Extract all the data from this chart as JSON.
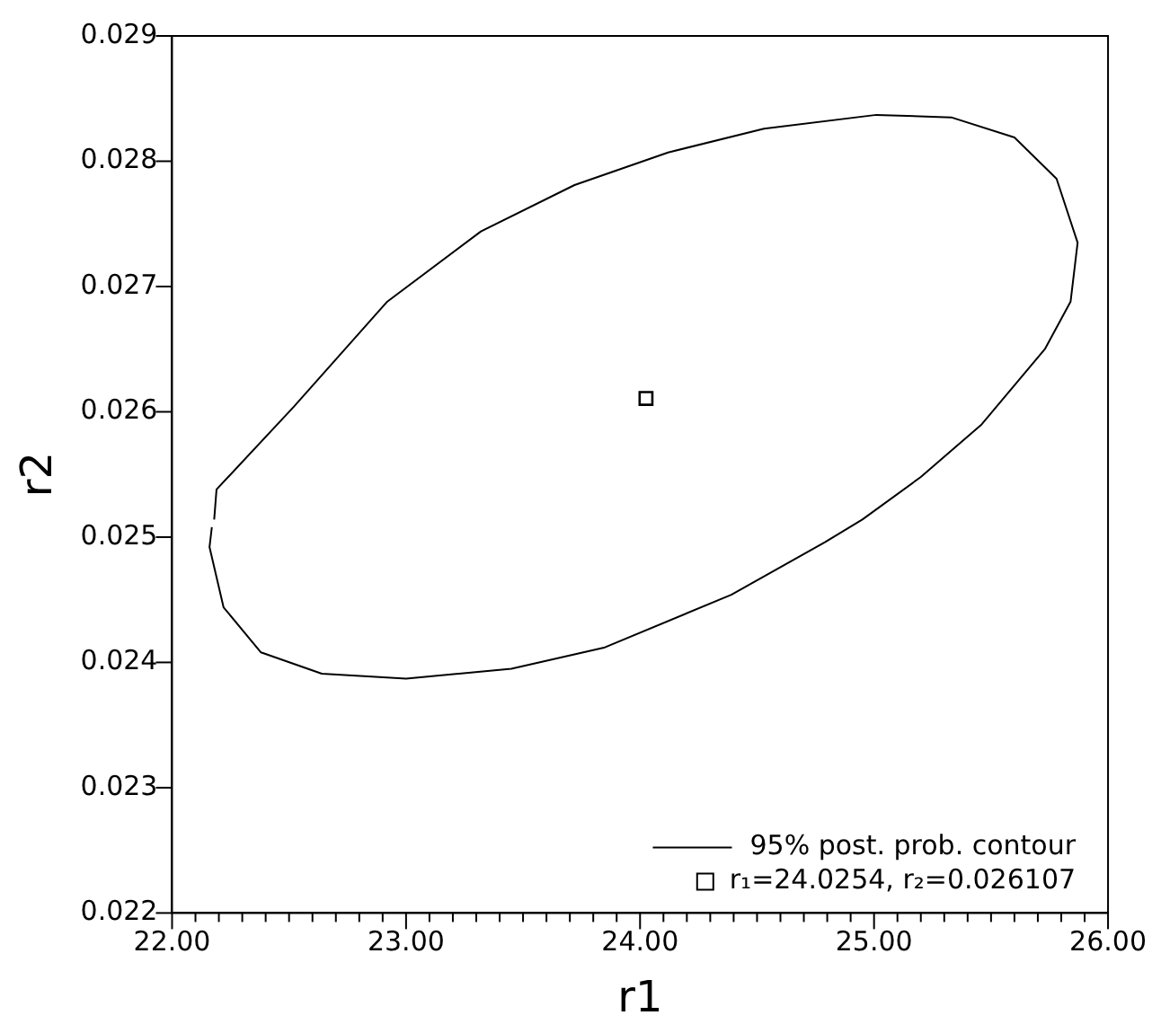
{
  "chart_data": {
    "type": "line",
    "xlabel": "r1",
    "ylabel": "r2",
    "xlim": [
      22,
      26
    ],
    "ylim": [
      0.022,
      0.029
    ],
    "xticks": [
      {
        "value": 22,
        "label": "22.00"
      },
      {
        "value": 22.1,
        "label": null
      },
      {
        "value": 22.2,
        "label": null
      },
      {
        "value": 22.3,
        "label": null
      },
      {
        "value": 22.4,
        "label": null
      },
      {
        "value": 22.5,
        "label": null
      },
      {
        "value": 22.6,
        "label": null
      },
      {
        "value": 22.7,
        "label": null
      },
      {
        "value": 22.8,
        "label": null
      },
      {
        "value": 22.9,
        "label": null
      },
      {
        "value": 23,
        "label": "23.00"
      },
      {
        "value": 23.1,
        "label": null
      },
      {
        "value": 23.2,
        "label": null
      },
      {
        "value": 23.3,
        "label": null
      },
      {
        "value": 23.4,
        "label": null
      },
      {
        "value": 23.5,
        "label": null
      },
      {
        "value": 23.6,
        "label": null
      },
      {
        "value": 23.7,
        "label": null
      },
      {
        "value": 23.8,
        "label": null
      },
      {
        "value": 23.9,
        "label": null
      },
      {
        "value": 24,
        "label": "24.00"
      },
      {
        "value": 24.1,
        "label": null
      },
      {
        "value": 24.2,
        "label": null
      },
      {
        "value": 24.3,
        "label": null
      },
      {
        "value": 24.4,
        "label": null
      },
      {
        "value": 24.5,
        "label": null
      },
      {
        "value": 24.6,
        "label": null
      },
      {
        "value": 24.7,
        "label": null
      },
      {
        "value": 24.8,
        "label": null
      },
      {
        "value": 24.9,
        "label": null
      },
      {
        "value": 25,
        "label": "25.00"
      },
      {
        "value": 25.1,
        "label": null
      },
      {
        "value": 25.2,
        "label": null
      },
      {
        "value": 25.3,
        "label": null
      },
      {
        "value": 25.4,
        "label": null
      },
      {
        "value": 25.5,
        "label": null
      },
      {
        "value": 25.6,
        "label": null
      },
      {
        "value": 25.7,
        "label": null
      },
      {
        "value": 25.8,
        "label": null
      },
      {
        "value": 25.9,
        "label": null
      },
      {
        "value": 26,
        "label": "26.00"
      }
    ],
    "yticks": [
      0.022,
      0.023,
      0.024,
      0.025,
      0.026,
      0.027,
      0.028,
      0.029
    ],
    "legend": "bottom right",
    "grid": false,
    "series": [
      {
        "name": "95% post. prob. contour",
        "type": "line",
        "color": "#000000",
        "marker": "none",
        "line_style": "solid",
        "x": [
          22.18,
          22.19,
          22.52,
          22.92,
          23.32,
          23.72,
          24.12,
          24.53,
          25.01,
          25.33,
          25.6,
          25.78,
          25.87,
          25.84,
          25.73,
          25.46,
          25.2,
          24.95,
          24.79,
          24.39,
          23.85,
          23.45,
          23.0,
          22.64,
          22.38,
          22.22,
          22.16,
          22.17
        ],
        "values": [
          0.02514,
          0.02538,
          0.02604,
          0.02688,
          0.02744,
          0.02781,
          0.02807,
          0.02826,
          0.02837,
          0.02835,
          0.02819,
          0.02786,
          0.02735,
          0.02688,
          0.0265,
          0.0259,
          0.02548,
          0.02514,
          0.02496,
          0.02454,
          0.02412,
          0.02395,
          0.02387,
          0.02391,
          0.02408,
          0.02444,
          0.02492,
          0.02508
        ]
      },
      {
        "name": "r₁=24.0254, r₂=0.026107",
        "type": "scatter",
        "color": "#000000",
        "marker": "square",
        "x": [
          24.0254
        ],
        "values": [
          0.026107
        ]
      }
    ]
  }
}
